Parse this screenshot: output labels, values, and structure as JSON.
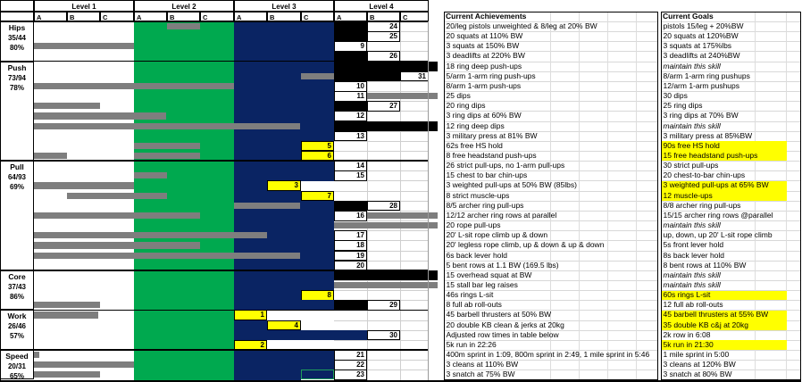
{
  "colors": {
    "green": "#00A94F",
    "navy": "#0A2463",
    "bar_gray": "#7E7E7E",
    "highlight_yellow": "#FFFF00",
    "black": "#000000",
    "selected_cell_border": "#1E9C5A"
  },
  "header": {
    "levels": [
      "Level 1",
      "Level 2",
      "Level 3",
      "Level 4"
    ],
    "sub_cols": [
      "A",
      "B",
      "C"
    ],
    "achievements_title": "Current Achievements",
    "goals_title": "Current Goals"
  },
  "categories": [
    {
      "name": "Hips",
      "score": "35/44",
      "pct": "80%",
      "rows": 4
    },
    {
      "name": "Push",
      "score": "73/94",
      "pct": "78%",
      "rows": 10
    },
    {
      "name": "Pull",
      "score": "64/93",
      "pct": "69%",
      "rows": 11
    },
    {
      "name": "Core",
      "score": "37/43",
      "pct": "86%",
      "rows": 4
    },
    {
      "name": "Work",
      "score": "26/46",
      "pct": "57%",
      "rows": 4
    },
    {
      "name": "Speed",
      "score": "20/31",
      "pct": "65%",
      "rows": 3
    }
  ],
  "rows": [
    {
      "a": "20/leg pistols unweighted & 8/leg at 20% BW",
      "g": "pistols 15/leg + 20%BW",
      "gs": "n",
      "cells": ".........bn.",
      "num": 24,
      "bars": [
        [
          187,
          224
        ]
      ]
    },
    {
      "a": "20 squats at 110% BW",
      "g": "20 squats at 120%BW",
      "gs": "n",
      "cells": ".........bn.",
      "num": 25,
      "bars": []
    },
    {
      "a": "3 squats at 150% BW",
      "g": "3 squats at 175%lbs",
      "gs": "n",
      "cells": ".........n..",
      "num": 9,
      "bars": [
        [
          38,
          150
        ]
      ]
    },
    {
      "a": "3 deadlifts at 220% BW",
      "g": "3 deadlifts at 240%BW",
      "gs": "n",
      "cells": ".........bn.",
      "num": 26,
      "bars": []
    },
    {
      "a": "18 ring deep push-ups",
      "g": "maintain this skill",
      "gs": "i",
      "cells": ".........bbb",
      "num": null,
      "bars": []
    },
    {
      "a": "5/arm 1-arm ring push-ups",
      "g": "8/arm 1-arm ring pushups",
      "gs": "n",
      "cells": ".........bbn",
      "num": 31,
      "bars": [
        [
          337,
          374
        ]
      ]
    },
    {
      "a": "8/arm 1-arm push-ups",
      "g": "12/arm 1-arm pushups",
      "gs": "n",
      "cells": ".........n..",
      "num": 10,
      "bars": [
        [
          38,
          262
        ]
      ]
    },
    {
      "a": "25 dips",
      "g": "30 dips",
      "gs": "n",
      "cells": ".........n..",
      "num": 11,
      "bars": [
        [
          411,
          490
        ]
      ]
    },
    {
      "a": "20 ring dips",
      "g": "25 ring dips",
      "gs": "n",
      "cells": ".........bn.",
      "num": 27,
      "bars": [
        [
          38,
          112
        ]
      ]
    },
    {
      "a": "3 ring dips at 60% BW",
      "g": "3 ring dips at 70% BW",
      "gs": "n",
      "cells": ".........n..",
      "num": 12,
      "bars": [
        [
          38,
          186
        ]
      ]
    },
    {
      "a": "12 ring deep dips",
      "g": "maintain this skill",
      "gs": "i",
      "cells": ".........bbb",
      "num": null,
      "bars": [
        [
          38,
          336
        ]
      ]
    },
    {
      "a": "3 military press at 81% BW",
      "g": "3 military press at 85%BW",
      "gs": "n",
      "cells": ".........n..",
      "num": 13,
      "bars": []
    },
    {
      "a": "62s free HS hold",
      "g": "90s free HS hold",
      "gs": "y",
      "cells": "........y...",
      "num": 5,
      "bars": [
        [
          150,
          224
        ]
      ]
    },
    {
      "a": "8 free headstand push-ups",
      "g": "15 free headstand push-ups",
      "gs": "y",
      "cells": "........y...",
      "num": 6,
      "bars": [
        [
          38,
          75
        ],
        [
          150,
          224
        ]
      ]
    },
    {
      "a": "26 strict pull-ups, no 1-arm pull-ups",
      "g": "30 strict pull-ups",
      "gs": "n",
      "cells": ".........n..",
      "num": 14,
      "bars": []
    },
    {
      "a": "15 chest to bar chin-ups",
      "g": "20 chest-to-bar chin-ups",
      "gs": "n",
      "cells": ".........n..",
      "num": 15,
      "bars": [
        [
          150,
          187
        ]
      ]
    },
    {
      "a": "3 weighted pull-ups at 50% BW (85lbs)",
      "g": "3 weighted pull-ups at 65% BW",
      "gs": "y",
      "cells": ".......yw...",
      "num": 3,
      "bars": [
        [
          38,
          150
        ]
      ]
    },
    {
      "a": "8 strict muscle-ups",
      "g": "12 muscle-ups",
      "gs": "y",
      "cells": "........y...",
      "num": 7,
      "bars": [
        [
          75,
          187
        ]
      ]
    },
    {
      "a": "8/5 archer ring pull-ups",
      "g": "8/8 archer ring pull-ups",
      "gs": "n",
      "cells": ".........bn.",
      "num": 28,
      "bars": [
        [
          262,
          336
        ]
      ]
    },
    {
      "a": "12/12 archer ring rows at parallel",
      "g": "15/15 archer ring rows @parallel",
      "gs": "n",
      "cells": ".........n..",
      "num": 16,
      "bars": [
        [
          38,
          224
        ],
        [
          411,
          490
        ]
      ]
    },
    {
      "a": "20 rope pull-ups",
      "g": "maintain this skill",
      "gs": "i",
      "cells": "............",
      "num": null,
      "bars": [
        [
          374,
          490
        ]
      ]
    },
    {
      "a": "20' L-sit rope climb up & down",
      "g": "up, down, up 20' L-sit rope climb",
      "gs": "n",
      "cells": ".........n..",
      "num": 17,
      "bars": [
        [
          38,
          299
        ]
      ]
    },
    {
      "a": "20' legless rope climb, up & down & up & down",
      "g": "5s front lever hold",
      "gs": "n",
      "cells": ".........n..",
      "num": 18,
      "bars": [
        [
          38,
          224
        ]
      ]
    },
    {
      "a": "6s back lever hold",
      "g": "8s back lever hold",
      "gs": "n",
      "cells": ".........n..",
      "num": 19,
      "bars": [
        [
          38,
          336
        ]
      ]
    },
    {
      "a": "5 bent rows at 1.1 BW (169.5 lbs)",
      "g": "8 bent rows at 110% BW",
      "gs": "n",
      "cells": ".........n..",
      "num": 20,
      "bars": []
    },
    {
      "a": "15 overhead squat at BW",
      "g": "maintain this skill",
      "gs": "i",
      "cells": ".........bbb",
      "num": null,
      "bars": []
    },
    {
      "a": "15 stall bar leg raises",
      "g": "maintain this skill",
      "gs": "i",
      "cells": "............",
      "num": null,
      "bars": [
        [
          374,
          490
        ]
      ]
    },
    {
      "a": "46s rings L-sit",
      "g": "60s rings L-sit",
      "gs": "y",
      "cells": "........y...",
      "num": 8,
      "bars": []
    },
    {
      "a": "8 full ab roll-outs",
      "g": "12 full ab roll-outs",
      "gs": "n",
      "cells": ".........bn.",
      "num": 29,
      "bars": [
        [
          38,
          112
        ]
      ]
    },
    {
      "a": "45 barbell thrusters at 50% BW",
      "g": "45 barbell thrusters at 55% BW",
      "gs": "y",
      "cells": "......yww...",
      "num": 1,
      "bars": [
        [
          38,
          110
        ]
      ]
    },
    {
      "a": "20 double KB clean & jerks at 20kg",
      "g": "35 double KB c&j at 20kg",
      "gs": "y",
      "cells": ".......yw...",
      "num": 4,
      "bars": []
    },
    {
      "a": "Adjusted row times in table below",
      "g": "2k row in 6:08",
      "gs": "n",
      "cells": ".........vn.",
      "num": 30,
      "bars": []
    },
    {
      "a": "5k run in 22:26",
      "g": "5k run in 21:30",
      "gs": "y",
      "cells": "......yww...",
      "num": 2,
      "bars": []
    },
    {
      "a": "400m sprint in 1:09, 800m sprint in 2:49, 1 mile sprint in 5:46",
      "g": "1 mile sprint in 5:00",
      "gs": "n",
      "cells": ".........n..",
      "num": 21,
      "bars": [
        [
          38,
          44
        ]
      ]
    },
    {
      "a": "3 cleans at 110% BW",
      "g": "3 cleans at 120% BW",
      "gs": "n",
      "cells": ".........n..",
      "num": 22,
      "bars": [
        [
          38,
          150
        ]
      ]
    },
    {
      "a": "3 snatch at 75% BW",
      "g": "3 snatch at 80% BW",
      "gs": "n",
      "cells": "........sn..",
      "num": 23,
      "bars": [
        [
          38,
          112
        ]
      ]
    }
  ]
}
